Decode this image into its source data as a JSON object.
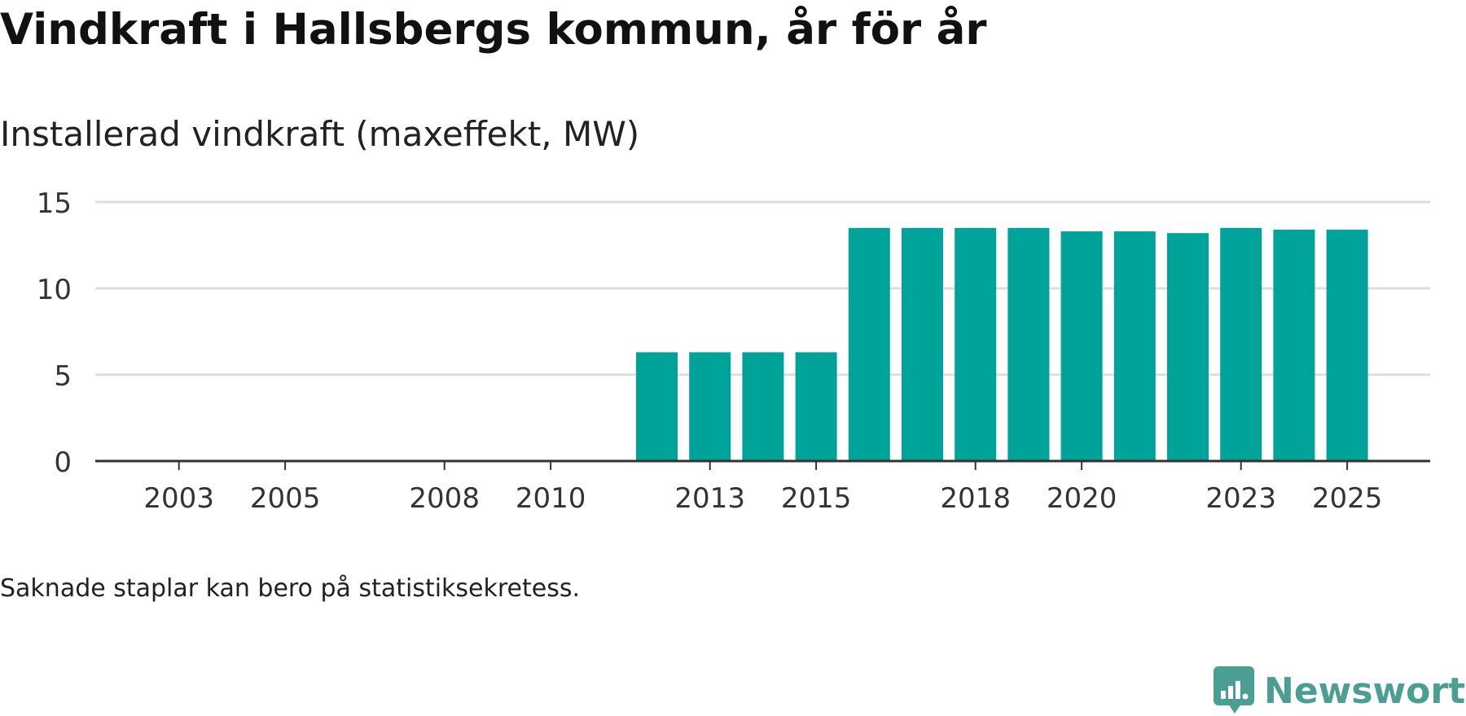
{
  "header": {
    "title": "Vindkraft i Hallsbergs kommun, år för år",
    "subtitle": "Installerad vindkraft (maxeffekt, MW)"
  },
  "footer": {
    "note": "Saknade staplar kan bero på statistiksekretess.",
    "brand": "Newsworthy"
  },
  "colors": {
    "bar": "#00a39a",
    "grid": "#dddddd",
    "axis": "#333333",
    "brand": "#4a9e92"
  },
  "chart_data": {
    "type": "bar",
    "title": "Vindkraft i Hallsbergs kommun, år för år",
    "ylabel": "Installerad vindkraft (maxeffekt, MW)",
    "xlabel": "",
    "ylim": [
      0,
      15
    ],
    "yticks": [
      0,
      5,
      10,
      15
    ],
    "xticks": [
      2003,
      2005,
      2008,
      2010,
      2013,
      2015,
      2018,
      2020,
      2023,
      2025
    ],
    "categories": [
      2002,
      2003,
      2004,
      2005,
      2006,
      2007,
      2008,
      2009,
      2010,
      2011,
      2012,
      2013,
      2014,
      2015,
      2016,
      2017,
      2018,
      2019,
      2020,
      2021,
      2022,
      2023,
      2024,
      2025
    ],
    "values": [
      0,
      0,
      0,
      0,
      0,
      0,
      0,
      0,
      0,
      0,
      6.3,
      6.3,
      6.3,
      6.3,
      13.5,
      13.5,
      13.5,
      13.5,
      13.3,
      13.3,
      13.2,
      13.5,
      13.4,
      13.4
    ],
    "grid": true
  }
}
